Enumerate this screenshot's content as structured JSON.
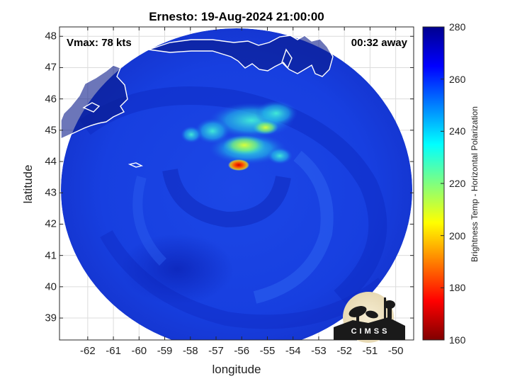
{
  "title": "Ernesto: 19-Aug-2024 21:00:00",
  "vmax_label": "Vmax: 78 kts",
  "away_label": "00:32 away",
  "xlabel": "longitude",
  "ylabel": "latitude",
  "colorbar_label": "Brightness Temp - Horizontal Polarization",
  "logo_text": "CIMSS",
  "chart_data": {
    "type": "heatmap",
    "x_ticks": [
      "-62",
      "-61",
      "-60",
      "-59",
      "-58",
      "-57",
      "-56",
      "-55",
      "-54",
      "-53",
      "-52",
      "-51",
      "-50"
    ],
    "y_ticks": [
      "48",
      "47",
      "46",
      "45",
      "44",
      "43",
      "42",
      "41",
      "40",
      "39"
    ],
    "xlim": [
      -63.1,
      -49.3
    ],
    "ylim": [
      38.3,
      48.3
    ],
    "colorbar_ticks": [
      "280",
      "260",
      "240",
      "220",
      "200",
      "180",
      "160"
    ],
    "colorbar_range": [
      160,
      280
    ],
    "colormap": "jet",
    "grid": true,
    "storm_center": {
      "lon": -56.1,
      "lat": 44.0
    }
  }
}
